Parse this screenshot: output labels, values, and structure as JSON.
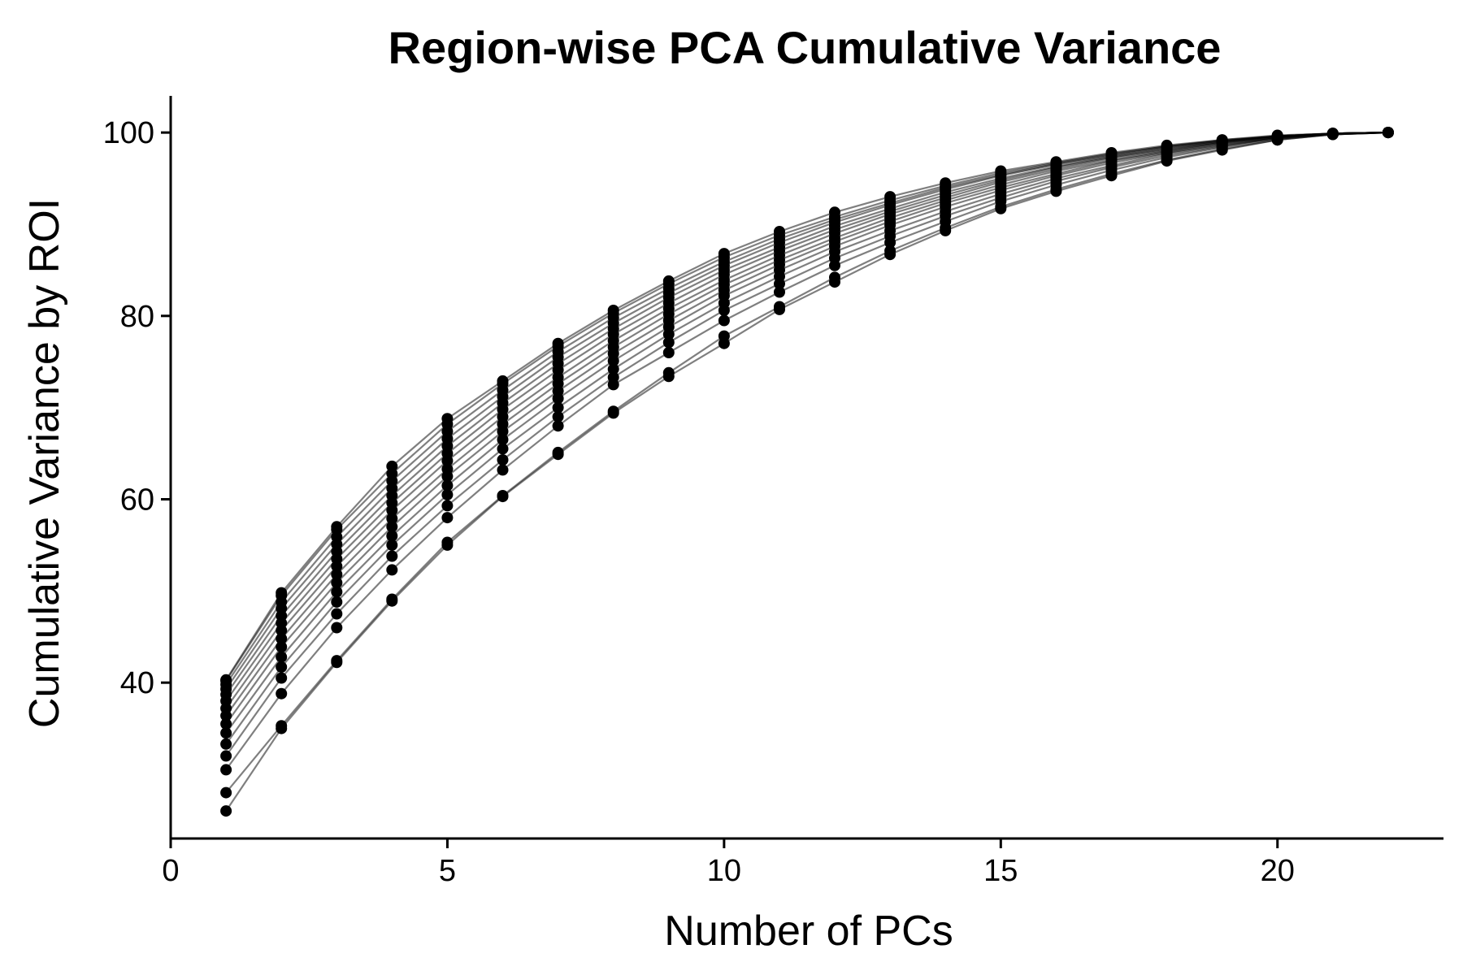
{
  "chart_data": {
    "type": "line",
    "title": "Region-wise PCA Cumulative Variance",
    "xlabel": "Number of PCs",
    "ylabel": "Cumulative Variance by ROI",
    "xlim": [
      0,
      23
    ],
    "ylim": [
      23,
      104
    ],
    "x_ticks": [
      0,
      5,
      10,
      15,
      20
    ],
    "y_ticks": [
      40,
      60,
      80,
      100
    ],
    "grid": false,
    "legend": "none",
    "colors": {
      "line": "#000000",
      "point": "#000000"
    },
    "x": [
      1,
      2,
      3,
      4,
      5,
      6,
      7,
      8,
      9,
      10,
      11,
      12,
      13,
      14,
      15,
      16,
      17,
      18,
      19,
      20,
      21,
      22
    ],
    "series": [
      {
        "values": [
          26.0,
          35.0,
          42.2,
          48.9,
          55.0,
          60.3,
          64.9,
          69.4,
          73.4,
          77.0,
          80.7,
          83.7,
          86.7,
          89.3,
          91.7,
          93.6,
          95.3,
          96.9,
          98.1,
          99.2,
          99.8,
          100
        ]
      },
      {
        "values": [
          28.0,
          35.3,
          42.4,
          49.1,
          55.3,
          60.4,
          65.1,
          69.6,
          73.8,
          77.8,
          81.0,
          84.2,
          87.1,
          89.6,
          91.9,
          93.8,
          95.5,
          97.0,
          98.2,
          99.2,
          99.8,
          100
        ]
      },
      {
        "values": [
          30.5,
          38.8,
          46.0,
          52.3,
          58.0,
          63.2,
          68.0,
          72.5,
          76.0,
          79.5,
          82.6,
          85.5,
          88.0,
          90.3,
          92.5,
          94.3,
          95.9,
          97.3,
          98.4,
          99.3,
          99.8,
          100
        ]
      },
      {
        "values": [
          32.0,
          40.5,
          47.5,
          53.8,
          59.3,
          64.3,
          69.0,
          73.3,
          77.1,
          80.6,
          83.5,
          86.3,
          88.7,
          90.9,
          92.9,
          94.7,
          96.2,
          97.5,
          98.5,
          99.4,
          99.8,
          100
        ]
      },
      {
        "values": [
          33.3,
          41.7,
          48.8,
          55.0,
          60.5,
          65.5,
          70.0,
          74.2,
          78.0,
          81.4,
          84.3,
          87.0,
          89.3,
          91.4,
          93.3,
          95.0,
          96.4,
          97.7,
          98.6,
          99.4,
          99.9,
          100
        ]
      },
      {
        "values": [
          34.5,
          42.8,
          49.9,
          56.0,
          61.5,
          66.5,
          71.0,
          75.1,
          78.8,
          82.2,
          85.0,
          87.6,
          89.9,
          91.9,
          93.7,
          95.3,
          96.7,
          97.8,
          98.7,
          99.4,
          99.9,
          100
        ]
      },
      {
        "values": [
          35.5,
          43.9,
          50.9,
          57.0,
          62.5,
          67.4,
          71.8,
          75.9,
          79.5,
          82.8,
          85.6,
          88.1,
          90.3,
          92.3,
          94.0,
          95.5,
          96.9,
          97.9,
          98.8,
          99.5,
          99.9,
          100
        ]
      },
      {
        "values": [
          36.4,
          44.8,
          51.8,
          57.9,
          63.3,
          68.2,
          72.6,
          76.6,
          80.2,
          83.4,
          86.1,
          88.5,
          90.7,
          92.6,
          94.3,
          95.8,
          97.0,
          98.0,
          98.9,
          99.5,
          99.9,
          100
        ]
      },
      {
        "values": [
          37.2,
          45.7,
          52.7,
          58.8,
          64.2,
          69.0,
          73.3,
          77.3,
          80.8,
          83.9,
          86.6,
          89.0,
          91.1,
          92.9,
          94.6,
          96.0,
          97.2,
          98.1,
          98.9,
          99.5,
          99.9,
          100
        ]
      },
      {
        "values": [
          38.0,
          46.5,
          53.5,
          59.6,
          65.0,
          69.8,
          74.1,
          78.0,
          81.4,
          84.5,
          87.1,
          89.4,
          91.4,
          93.2,
          94.8,
          96.2,
          97.3,
          98.2,
          99.0,
          99.6,
          99.9,
          100
        ]
      },
      {
        "values": [
          38.7,
          47.3,
          54.3,
          60.4,
          65.8,
          70.5,
          74.8,
          78.6,
          82.0,
          85.0,
          87.5,
          89.8,
          91.7,
          93.5,
          95.0,
          96.3,
          97.4,
          98.3,
          99.0,
          99.6,
          99.9,
          100
        ]
      },
      {
        "values": [
          39.3,
          48.1,
          55.1,
          61.2,
          66.6,
          71.2,
          75.5,
          79.2,
          82.5,
          85.5,
          88.0,
          90.2,
          92.1,
          93.8,
          95.3,
          96.5,
          97.5,
          98.4,
          99.1,
          99.6,
          99.9,
          100
        ]
      },
      {
        "values": [
          39.8,
          48.8,
          55.9,
          62.0,
          67.4,
          71.9,
          76.1,
          79.8,
          83.0,
          85.9,
          88.4,
          90.5,
          92.3,
          94.0,
          95.4,
          96.6,
          97.6,
          98.5,
          99.1,
          99.6,
          99.9,
          100
        ]
      },
      {
        "values": [
          40.2,
          49.5,
          56.7,
          62.8,
          68.2,
          72.6,
          76.7,
          80.3,
          83.5,
          86.4,
          88.8,
          90.8,
          92.6,
          94.2,
          95.6,
          96.7,
          97.7,
          98.5,
          99.2,
          99.6,
          99.9,
          100
        ]
      },
      {
        "values": [
          40.3,
          49.8,
          57.0,
          63.6,
          68.8,
          72.9,
          77.0,
          80.6,
          83.8,
          86.8,
          89.2,
          91.3,
          93.0,
          94.5,
          95.8,
          96.8,
          97.8,
          98.6,
          99.2,
          99.7,
          99.9,
          100
        ]
      }
    ]
  }
}
